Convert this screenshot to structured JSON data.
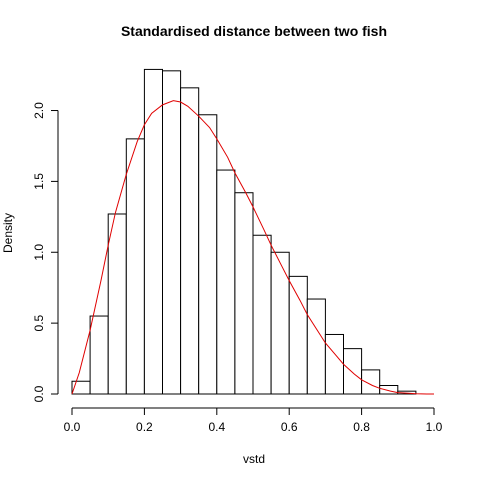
{
  "chart_data": {
    "type": "bar",
    "subtype": "histogram-with-density-curve",
    "title": "Standardised distance between two fish",
    "xlabel": "vstd",
    "ylabel": "Density",
    "xlim": [
      0.0,
      1.0
    ],
    "ylim": [
      0.0,
      2.3
    ],
    "x_ticks": [
      0.0,
      0.2,
      0.4,
      0.6,
      0.8,
      1.0
    ],
    "x_tick_labels": [
      "0.0",
      "0.2",
      "0.4",
      "0.6",
      "0.8",
      "1.0"
    ],
    "y_ticks": [
      0.0,
      0.5,
      1.0,
      1.5,
      2.0
    ],
    "y_tick_labels": [
      "0.0",
      "0.5",
      "1.0",
      "1.5",
      "2.0"
    ],
    "bin_width": 0.05,
    "bins": [
      {
        "from": 0.0,
        "to": 0.05,
        "density": 0.09
      },
      {
        "from": 0.05,
        "to": 0.1,
        "density": 0.55
      },
      {
        "from": 0.1,
        "to": 0.15,
        "density": 1.27
      },
      {
        "from": 0.15,
        "to": 0.2,
        "density": 1.8
      },
      {
        "from": 0.2,
        "to": 0.25,
        "density": 2.29
      },
      {
        "from": 0.25,
        "to": 0.3,
        "density": 2.28
      },
      {
        "from": 0.3,
        "to": 0.35,
        "density": 2.16
      },
      {
        "from": 0.35,
        "to": 0.4,
        "density": 1.97
      },
      {
        "from": 0.4,
        "to": 0.45,
        "density": 1.58
      },
      {
        "from": 0.45,
        "to": 0.5,
        "density": 1.42
      },
      {
        "from": 0.5,
        "to": 0.55,
        "density": 1.12
      },
      {
        "from": 0.55,
        "to": 0.6,
        "density": 1.0
      },
      {
        "from": 0.6,
        "to": 0.65,
        "density": 0.83
      },
      {
        "from": 0.65,
        "to": 0.7,
        "density": 0.67
      },
      {
        "from": 0.7,
        "to": 0.75,
        "density": 0.42
      },
      {
        "from": 0.75,
        "to": 0.8,
        "density": 0.32
      },
      {
        "from": 0.8,
        "to": 0.85,
        "density": 0.17
      },
      {
        "from": 0.85,
        "to": 0.9,
        "density": 0.06
      },
      {
        "from": 0.9,
        "to": 0.95,
        "density": 0.02
      }
    ],
    "density_curve": {
      "color": "#e00000",
      "x": [
        0.0,
        0.02,
        0.05,
        0.08,
        0.1,
        0.12,
        0.15,
        0.18,
        0.2,
        0.22,
        0.25,
        0.28,
        0.3,
        0.32,
        0.35,
        0.38,
        0.4,
        0.43,
        0.45,
        0.48,
        0.5,
        0.53,
        0.55,
        0.58,
        0.6,
        0.63,
        0.65,
        0.68,
        0.7,
        0.73,
        0.75,
        0.78,
        0.8,
        0.83,
        0.85,
        0.88,
        0.9,
        0.93,
        0.95,
        0.98,
        1.0
      ],
      "y": [
        0.0,
        0.15,
        0.45,
        0.8,
        1.05,
        1.28,
        1.55,
        1.78,
        1.9,
        1.98,
        2.04,
        2.07,
        2.06,
        2.03,
        1.96,
        1.88,
        1.8,
        1.67,
        1.56,
        1.42,
        1.32,
        1.16,
        1.05,
        0.9,
        0.8,
        0.66,
        0.56,
        0.44,
        0.36,
        0.27,
        0.21,
        0.14,
        0.1,
        0.06,
        0.04,
        0.02,
        0.01,
        0.005,
        0.002,
        0.0,
        0.0
      ]
    },
    "grid": false,
    "legend": "none"
  }
}
